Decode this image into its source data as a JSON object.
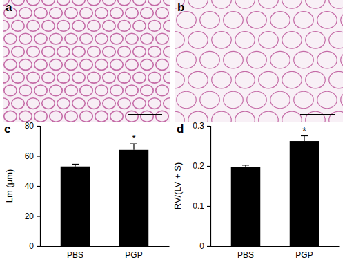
{
  "images": [
    {
      "panel": "a"
    },
    {
      "panel": "b"
    }
  ],
  "chart_data": [
    {
      "type": "bar",
      "panel": "c",
      "ylabel": "Lm (μm)",
      "categories": [
        "PBS",
        "PGP"
      ],
      "values": [
        53,
        64
      ],
      "errors": [
        1.5,
        4
      ],
      "color": "#000000",
      "ylim": [
        0,
        80
      ],
      "yticks": [
        0,
        20,
        40,
        60,
        80
      ],
      "annotations": [
        {
          "x": "PGP",
          "text": "*"
        }
      ]
    },
    {
      "type": "bar",
      "panel": "d",
      "ylabel": "RV/(LV + S)",
      "categories": [
        "PBS",
        "PGP"
      ],
      "values": [
        0.197,
        0.262
      ],
      "errors": [
        0.005,
        0.013
      ],
      "color": "#000000",
      "ylim": [
        0,
        0.3
      ],
      "yticks": [
        0,
        0.1,
        0.2,
        0.3
      ],
      "annotations": [
        {
          "x": "PGP",
          "text": "*"
        }
      ]
    }
  ]
}
